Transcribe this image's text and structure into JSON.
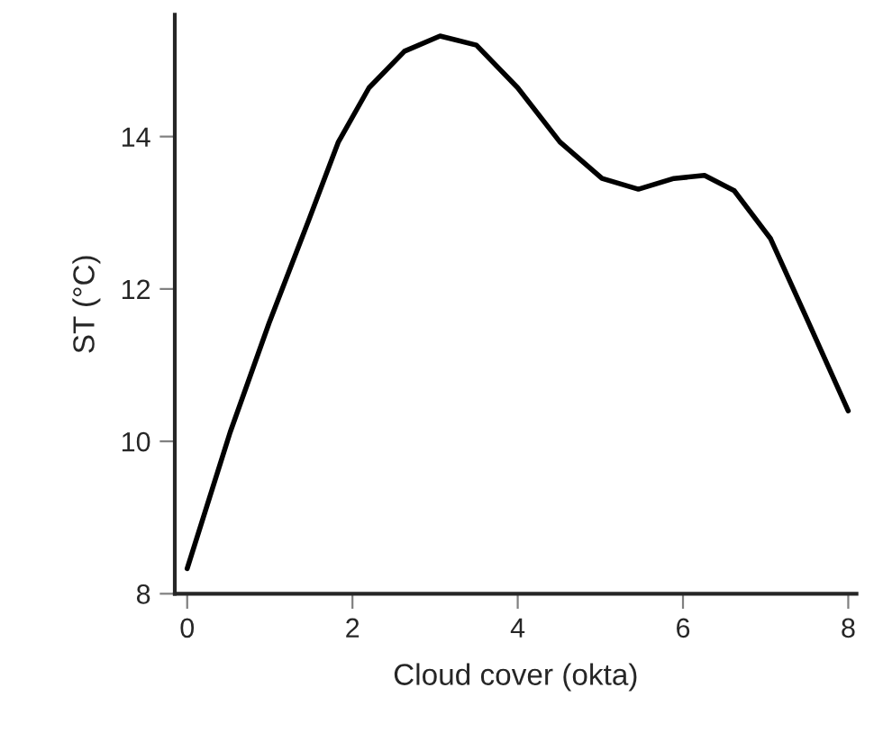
{
  "chart_data": {
    "type": "line",
    "xlabel": "Cloud cover (okta)",
    "ylabel": "ST (°C)",
    "x": [
      0,
      0.52,
      0.99,
      1.47,
      1.83,
      2.2,
      2.63,
      3.06,
      3.5,
      4.0,
      4.51,
      5.02,
      5.46,
      5.89,
      6.26,
      6.62,
      7.06,
      7.49,
      8.0
    ],
    "series": [
      {
        "color": "#000000",
        "values": [
          8.33,
          10.12,
          11.55,
          12.9,
          13.93,
          14.64,
          15.12,
          15.32,
          15.2,
          14.64,
          13.93,
          13.45,
          13.31,
          13.45,
          13.49,
          13.29,
          12.66,
          11.63,
          10.4
        ]
      }
    ],
    "xlim": [
      -0.15,
      8.1
    ],
    "ylim": [
      8,
      15.6
    ],
    "xticks": [
      0,
      2,
      4,
      6,
      8
    ],
    "yticks": [
      8,
      10,
      12,
      14
    ],
    "grid": false,
    "legend": false,
    "marker": "none",
    "line_style": "solid"
  }
}
